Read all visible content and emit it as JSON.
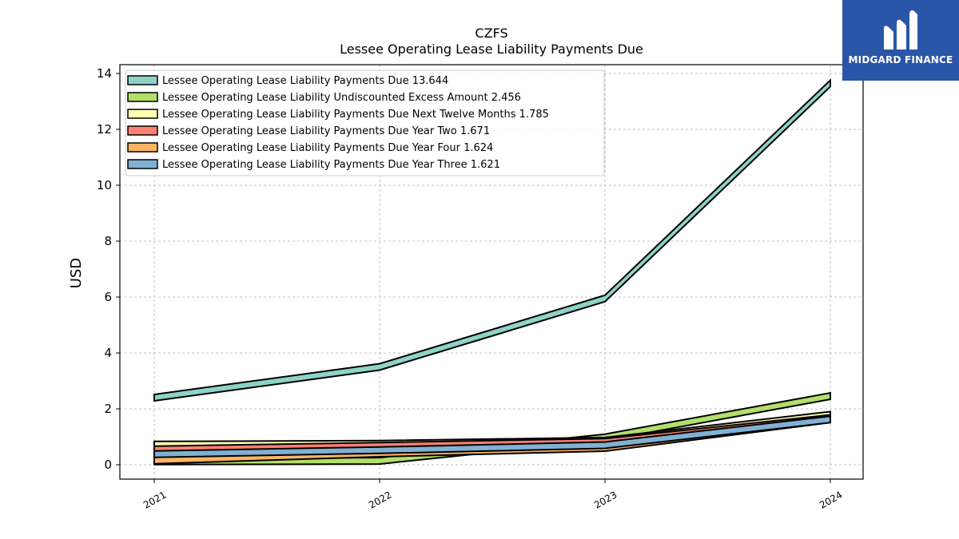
{
  "chart_data": {
    "type": "area",
    "title": "CZFS",
    "subtitle": "Lessee Operating Lease Liability Payments Due",
    "xlabel": "",
    "ylabel": "USD",
    "categories": [
      "2021",
      "2022",
      "2023",
      "2024"
    ],
    "ylim": [
      -0.5,
      14.3
    ],
    "yticks": [
      0,
      2,
      4,
      6,
      8,
      10,
      12,
      14
    ],
    "grid": true,
    "legend_position": "top-left",
    "series": [
      {
        "name": "Lessee Operating Lease Liability Payments Due",
        "legend_value": "13.644",
        "values": [
          2.4,
          3.5,
          5.95,
          13.644
        ],
        "color": "#8dd3c7"
      },
      {
        "name": "Lessee Operating Lease Liability Undiscounted Excess Amount",
        "legend_value": "2.456",
        "values": [
          0.12,
          0.14,
          0.98,
          2.456
        ],
        "color": "#b3de69"
      },
      {
        "name": "Lessee Operating Lease Liability Payments Due Next Twelve Months",
        "legend_value": "1.785",
        "values": [
          0.72,
          0.75,
          0.86,
          1.785
        ],
        "color": "#ffffb3"
      },
      {
        "name": "Lessee Operating Lease Liability Payments Due Year Two",
        "legend_value": "1.671",
        "values": [
          0.55,
          0.68,
          0.82,
          1.671
        ],
        "color": "#fb8072"
      },
      {
        "name": "Lessee Operating Lease Liability Payments Due Year Four",
        "legend_value": "1.624",
        "values": [
          0.15,
          0.4,
          0.6,
          1.624
        ],
        "color": "#fdb462"
      },
      {
        "name": "Lessee Operating Lease Liability Payments Due Year Three",
        "legend_value": "1.621",
        "values": [
          0.38,
          0.52,
          0.7,
          1.621
        ],
        "color": "#80b1d3"
      }
    ]
  },
  "logo": {
    "text": "MIDGARD FINANCE",
    "color": "#2a56a8"
  }
}
